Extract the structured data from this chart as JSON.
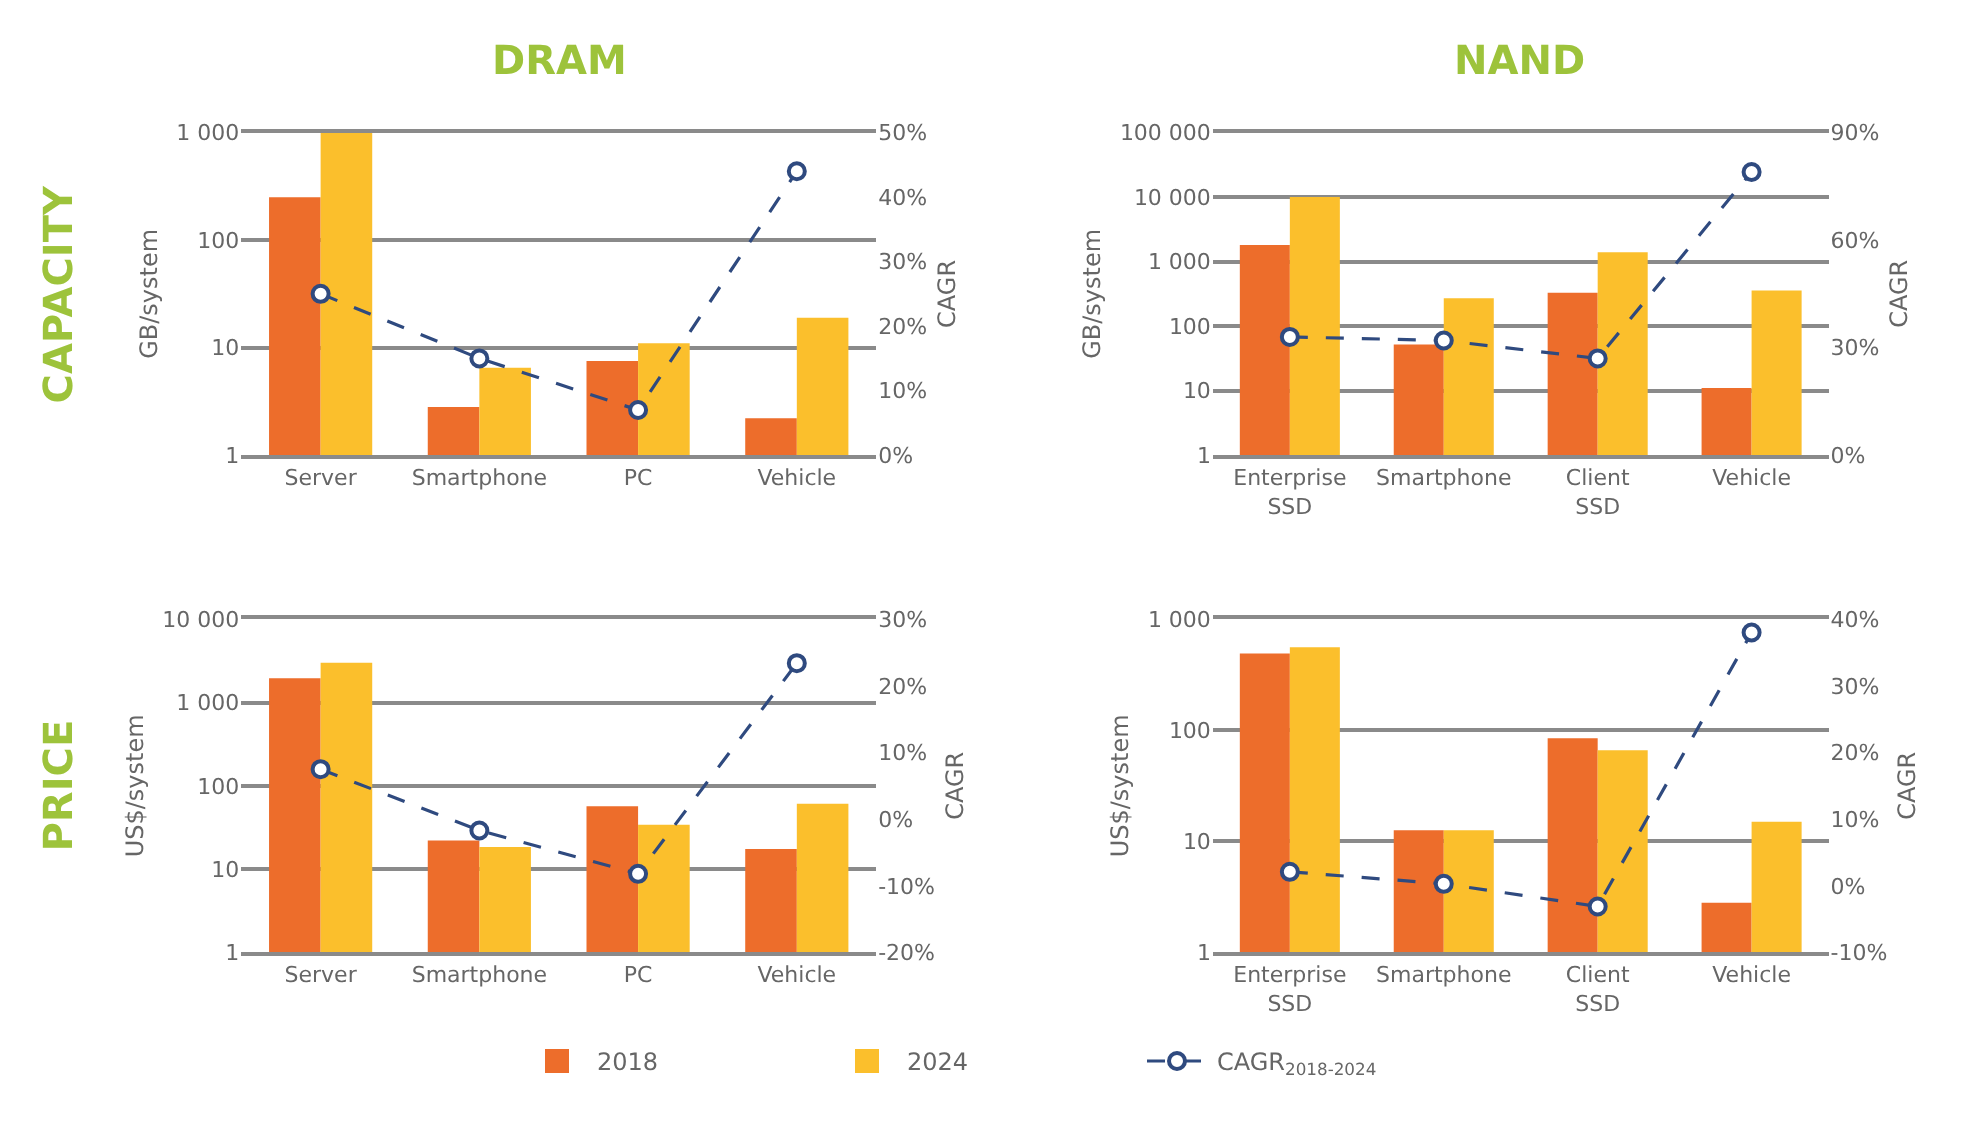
{
  "chart_data": [
    {
      "type": "bar",
      "title": "DRAM",
      "annotations": [
        "CAPACITY"
      ],
      "ylabel": "GB/system",
      "y2label": "CAGR",
      "categories": [
        "Server",
        "Smartphone",
        "PC",
        "Vehicle"
      ],
      "log": "y",
      "ylim": [
        1,
        1000
      ],
      "yticks": [
        1,
        10,
        100,
        {
          "value": 1000,
          "label": "1 000"
        }
      ],
      "y2lim": [
        0,
        50
      ],
      "y2ticks": [
        {
          "value": 0,
          "label": "0%"
        },
        {
          "value": 10,
          "label": "10%"
        },
        {
          "value": 20,
          "label": "20%"
        },
        {
          "value": 30,
          "label": "30%"
        },
        {
          "value": 40,
          "label": "40%"
        },
        {
          "value": 50,
          "label": "50%"
        }
      ],
      "grid": "y",
      "legend": "bottom",
      "series": [
        {
          "name": "2018",
          "color": "#ed6d2b",
          "values": [
            250,
            2.8,
            7.5,
            2.2
          ]
        },
        {
          "name": "2024",
          "color": "#fbbf2c",
          "values": [
            1000,
            6.5,
            11,
            19
          ]
        },
        {
          "name": "CAGR$_{2018-2024}$",
          "type": "line",
          "axis": "y2",
          "color": "#2f4a7f",
          "marker": "circle",
          "line_style": "dashed",
          "values": [
            25,
            15,
            7,
            44
          ]
        }
      ]
    },
    {
      "type": "bar",
      "title": "NAND",
      "ylabel": "GB/system",
      "y2label": "CAGR",
      "categories": [
        "Enterprise\nSSD",
        "Smartphone",
        "Client\nSSD",
        "Vehicle"
      ],
      "log": "y",
      "ylim": [
        1,
        100000
      ],
      "yticks": [
        1,
        10,
        100,
        {
          "value": 1000,
          "label": "1 000"
        },
        {
          "value": 10000,
          "label": "10 000"
        },
        {
          "value": 100000,
          "label": "100 000"
        }
      ],
      "y2lim": [
        0,
        90
      ],
      "y2ticks": [
        {
          "value": 0,
          "label": "0%"
        },
        {
          "value": 30,
          "label": "30%"
        },
        {
          "value": 60,
          "label": "60%"
        },
        {
          "value": 90,
          "label": "90%"
        }
      ],
      "grid": "y",
      "series": [
        {
          "color": "#ed6d2b",
          "values": [
            1800,
            52,
            330,
            11
          ]
        },
        {
          "color": "#fbbf2c",
          "values": [
            10000,
            270,
            1400,
            355
          ]
        },
        {
          "type": "line",
          "axis": "y2",
          "color": "#2f4a7f",
          "marker": "circle",
          "line_style": "dashed",
          "values": [
            33,
            32,
            27,
            79
          ]
        }
      ]
    },
    {
      "type": "bar",
      "annotations": [
        "PRICE"
      ],
      "ylabel": "US$/system",
      "y2label": "CAGR",
      "categories": [
        "Server",
        "Smartphone",
        "PC",
        "Vehicle"
      ],
      "log": "y",
      "ylim": [
        1,
        10000
      ],
      "yticks": [
        1,
        10,
        100,
        {
          "value": 1000,
          "label": "1 000"
        },
        {
          "value": 10000,
          "label": "10 000"
        }
      ],
      "y2lim": [
        -20,
        30
      ],
      "y2ticks": [
        {
          "value": -20,
          "label": "-20%"
        },
        {
          "value": -10,
          "label": "-10%"
        },
        {
          "value": 0,
          "label": "0%"
        },
        {
          "value": 10,
          "label": "10%"
        },
        {
          "value": 20,
          "label": "20%"
        },
        {
          "value": 30,
          "label": "30%"
        }
      ],
      "grid": "y",
      "series": [
        {
          "color": "#ed6d2b",
          "values": [
            1950,
            22,
            57,
            17.5
          ]
        },
        {
          "color": "#fbbf2c",
          "values": [
            3000,
            18.5,
            34,
            61
          ]
        },
        {
          "type": "line",
          "axis": "y2",
          "color": "#2f4a7f",
          "marker": "circle",
          "line_style": "dashed",
          "values": [
            7.5,
            -1.7,
            -8.2,
            23.4
          ]
        }
      ]
    },
    {
      "type": "bar",
      "ylabel": "US$/system",
      "y2label": "CAGR",
      "categories": [
        "Enterprise\nSSD",
        "Smartphone",
        "Client\nSSD",
        "Vehicle"
      ],
      "log": "y",
      "ylim": [
        1,
        1000
      ],
      "yticks": [
        1,
        10,
        100,
        {
          "value": 1000,
          "label": "1 000"
        }
      ],
      "y2lim": [
        -10,
        40
      ],
      "y2ticks": [
        {
          "value": -10,
          "label": "-10%"
        },
        {
          "value": 0,
          "label": "0%"
        },
        {
          "value": 10,
          "label": "10%"
        },
        {
          "value": 20,
          "label": "20%"
        },
        {
          "value": 30,
          "label": "30%"
        },
        {
          "value": 40,
          "label": "40%"
        }
      ],
      "grid": "y",
      "series": [
        {
          "color": "#ed6d2b",
          "values": [
            490,
            12.6,
            85,
            2.8
          ]
        },
        {
          "color": "#fbbf2c",
          "values": [
            560,
            12.6,
            66,
            15
          ]
        },
        {
          "type": "line",
          "axis": "y2",
          "color": "#2f4a7f",
          "marker": "circle",
          "line_style": "dashed",
          "values": [
            2.1,
            0.3,
            -3.1,
            38
          ]
        }
      ]
    }
  ]
}
